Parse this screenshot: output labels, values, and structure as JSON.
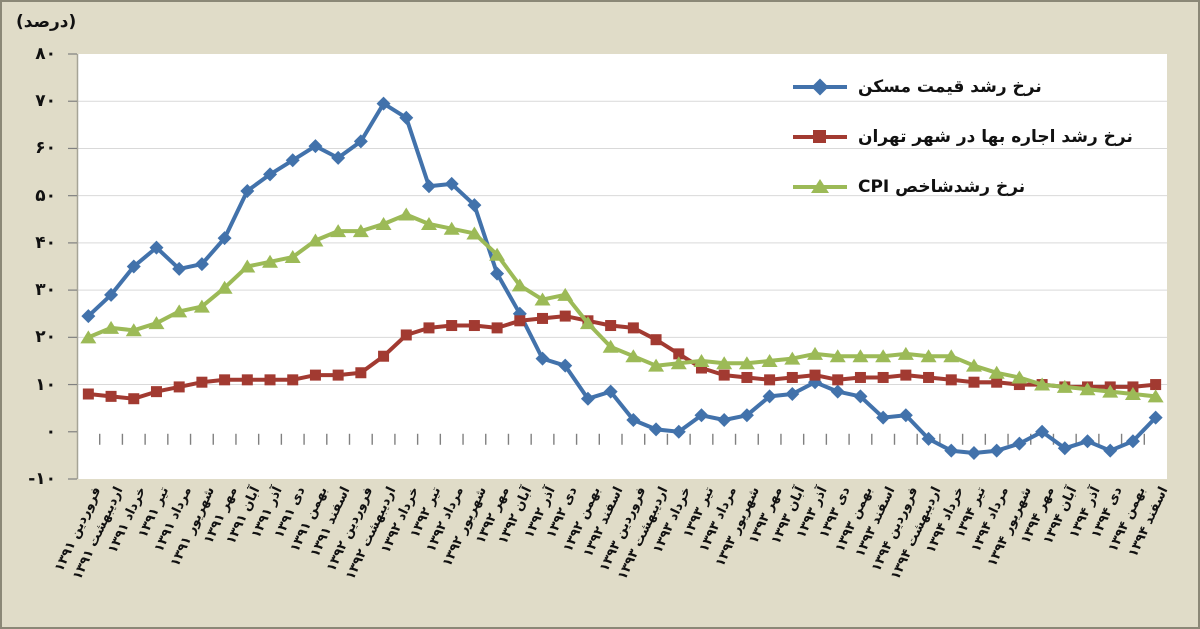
{
  "style": {
    "background": "#e0dcc8",
    "plot_background": "#ffffff",
    "border_color": "#8b8877",
    "gridline_color": "#d9d9d9",
    "axis_color": "#a6a496",
    "tick_color": "#808080",
    "text_color": "#111111"
  },
  "axis_title": "(درصد)",
  "y_axis": {
    "labels": [
      "۸۰",
      "۷۰",
      "۶۰",
      "۵۰",
      "۴۰",
      "۳۰",
      "۲۰",
      "۱۰",
      "۰",
      "-۱۰"
    ],
    "values": [
      80,
      70,
      60,
      50,
      40,
      30,
      20,
      10,
      0,
      -10
    ]
  },
  "chart_data": {
    "type": "line",
    "title": "",
    "xlabel": "",
    "ylabel": "(درصد)",
    "ylim": [
      -10,
      80
    ],
    "grid": true,
    "legend_position": "top-right",
    "categories": [
      "فروردین ۱۳۹۱",
      "اردیبهشت ۱۳۹۱",
      "خرداد ۱۳۹۱",
      "تیر ۱۳۹۱",
      "مرداد ۱۳۹۱",
      "شهریور ۱۳۹۱",
      "مهر ۱۳۹۱",
      "آبان ۱۳۹۱",
      "آذر ۱۳۹۱",
      "دی ۱۳۹۱",
      "بهمن ۱۳۹۱",
      "اسفند ۱۳۹۱",
      "فروردین ۱۳۹۲",
      "اردیبهشت ۱۳۹۲",
      "خرداد ۱۳۹۲",
      "تیر ۱۳۹۲",
      "مرداد ۱۳۹۲",
      "شهریور ۱۳۹۲",
      "مهر ۱۳۹۲",
      "آبان ۱۳۹۲",
      "آذر ۱۳۹۲",
      "دی ۱۳۹۲",
      "بهمن ۱۳۹۲",
      "اسفند ۱۳۹۲",
      "فروردین ۱۳۹۳",
      "اردیبهشت ۱۳۹۳",
      "خرداد ۱۳۹۳",
      "تیر ۱۳۹۳",
      "مرداد ۱۳۹۳",
      "شهریور ۱۳۹۳",
      "مهر ۱۳۹۳",
      "آبان ۱۳۹۳",
      "آذر ۱۳۹۳",
      "دی ۱۳۹۳",
      "بهمن ۱۳۹۳",
      "اسفند ۱۳۹۳",
      "فروردین ۱۳۹۴",
      "اردیبهشت ۱۳۹۴",
      "خرداد ۱۳۹۴",
      "تیر ۱۳۹۴",
      "مرداد ۱۳۹۴",
      "شهریور ۱۳۹۴",
      "مهر ۱۳۹۴",
      "آبان ۱۳۹۴",
      "آذر ۱۳۹۴",
      "دی ۱۳۹۴",
      "بهمن ۱۳۹۴",
      "اسفند ۱۳۹۴"
    ],
    "series": [
      {
        "name": "نرخ رشد قیمت مسکن",
        "color": "#4272ab",
        "marker": "diamond",
        "values": [
          24.5,
          29,
          35,
          39,
          34.5,
          35.5,
          41,
          51,
          54.5,
          57.5,
          60.5,
          58,
          61.5,
          69.5,
          66.5,
          52,
          52.5,
          48,
          33.5,
          25,
          15.5,
          14,
          7,
          8.5,
          2.5,
          0.5,
          0,
          3.5,
          2.5,
          3.5,
          7.5,
          8,
          10.5,
          8.5,
          7.5,
          3,
          3.5,
          -1.5,
          -4,
          -4.5,
          -4,
          -2.5,
          0,
          -3.5,
          -2,
          -4,
          -2,
          3
        ]
      },
      {
        "name": "نرخ رشد اجاره بها در شهر تهران",
        "color": "#a23a31",
        "marker": "square",
        "values": [
          8,
          7.5,
          7,
          8.5,
          9.5,
          10.5,
          11,
          11,
          11,
          11,
          12,
          12,
          12.5,
          16,
          20.5,
          22,
          22.5,
          22.5,
          22,
          23.5,
          24,
          24.5,
          23.5,
          22.5,
          22,
          19.5,
          16.5,
          13.5,
          12,
          11.5,
          11,
          11.5,
          12,
          11,
          11.5,
          11.5,
          12,
          11.5,
          11,
          10.5,
          10.5,
          10,
          10,
          9.5,
          9.5,
          9.5,
          9.5,
          10
        ]
      },
      {
        "name": "نرخ رشدشاخص CPI",
        "color": "#9cba57",
        "marker": "triangle",
        "values": [
          20,
          22,
          21.5,
          23,
          25.5,
          26.5,
          30.5,
          35,
          36,
          37,
          40.5,
          42.5,
          42.5,
          44,
          46,
          44,
          43,
          42,
          37.5,
          31,
          28,
          29,
          23,
          18,
          16,
          14,
          14.5,
          15,
          14.5,
          14.5,
          15,
          15.5,
          16.5,
          16,
          16,
          16,
          16.5,
          16,
          16,
          14,
          12.5,
          11.5,
          10,
          9.5,
          9,
          8.5,
          8,
          7.5
        ]
      }
    ]
  }
}
